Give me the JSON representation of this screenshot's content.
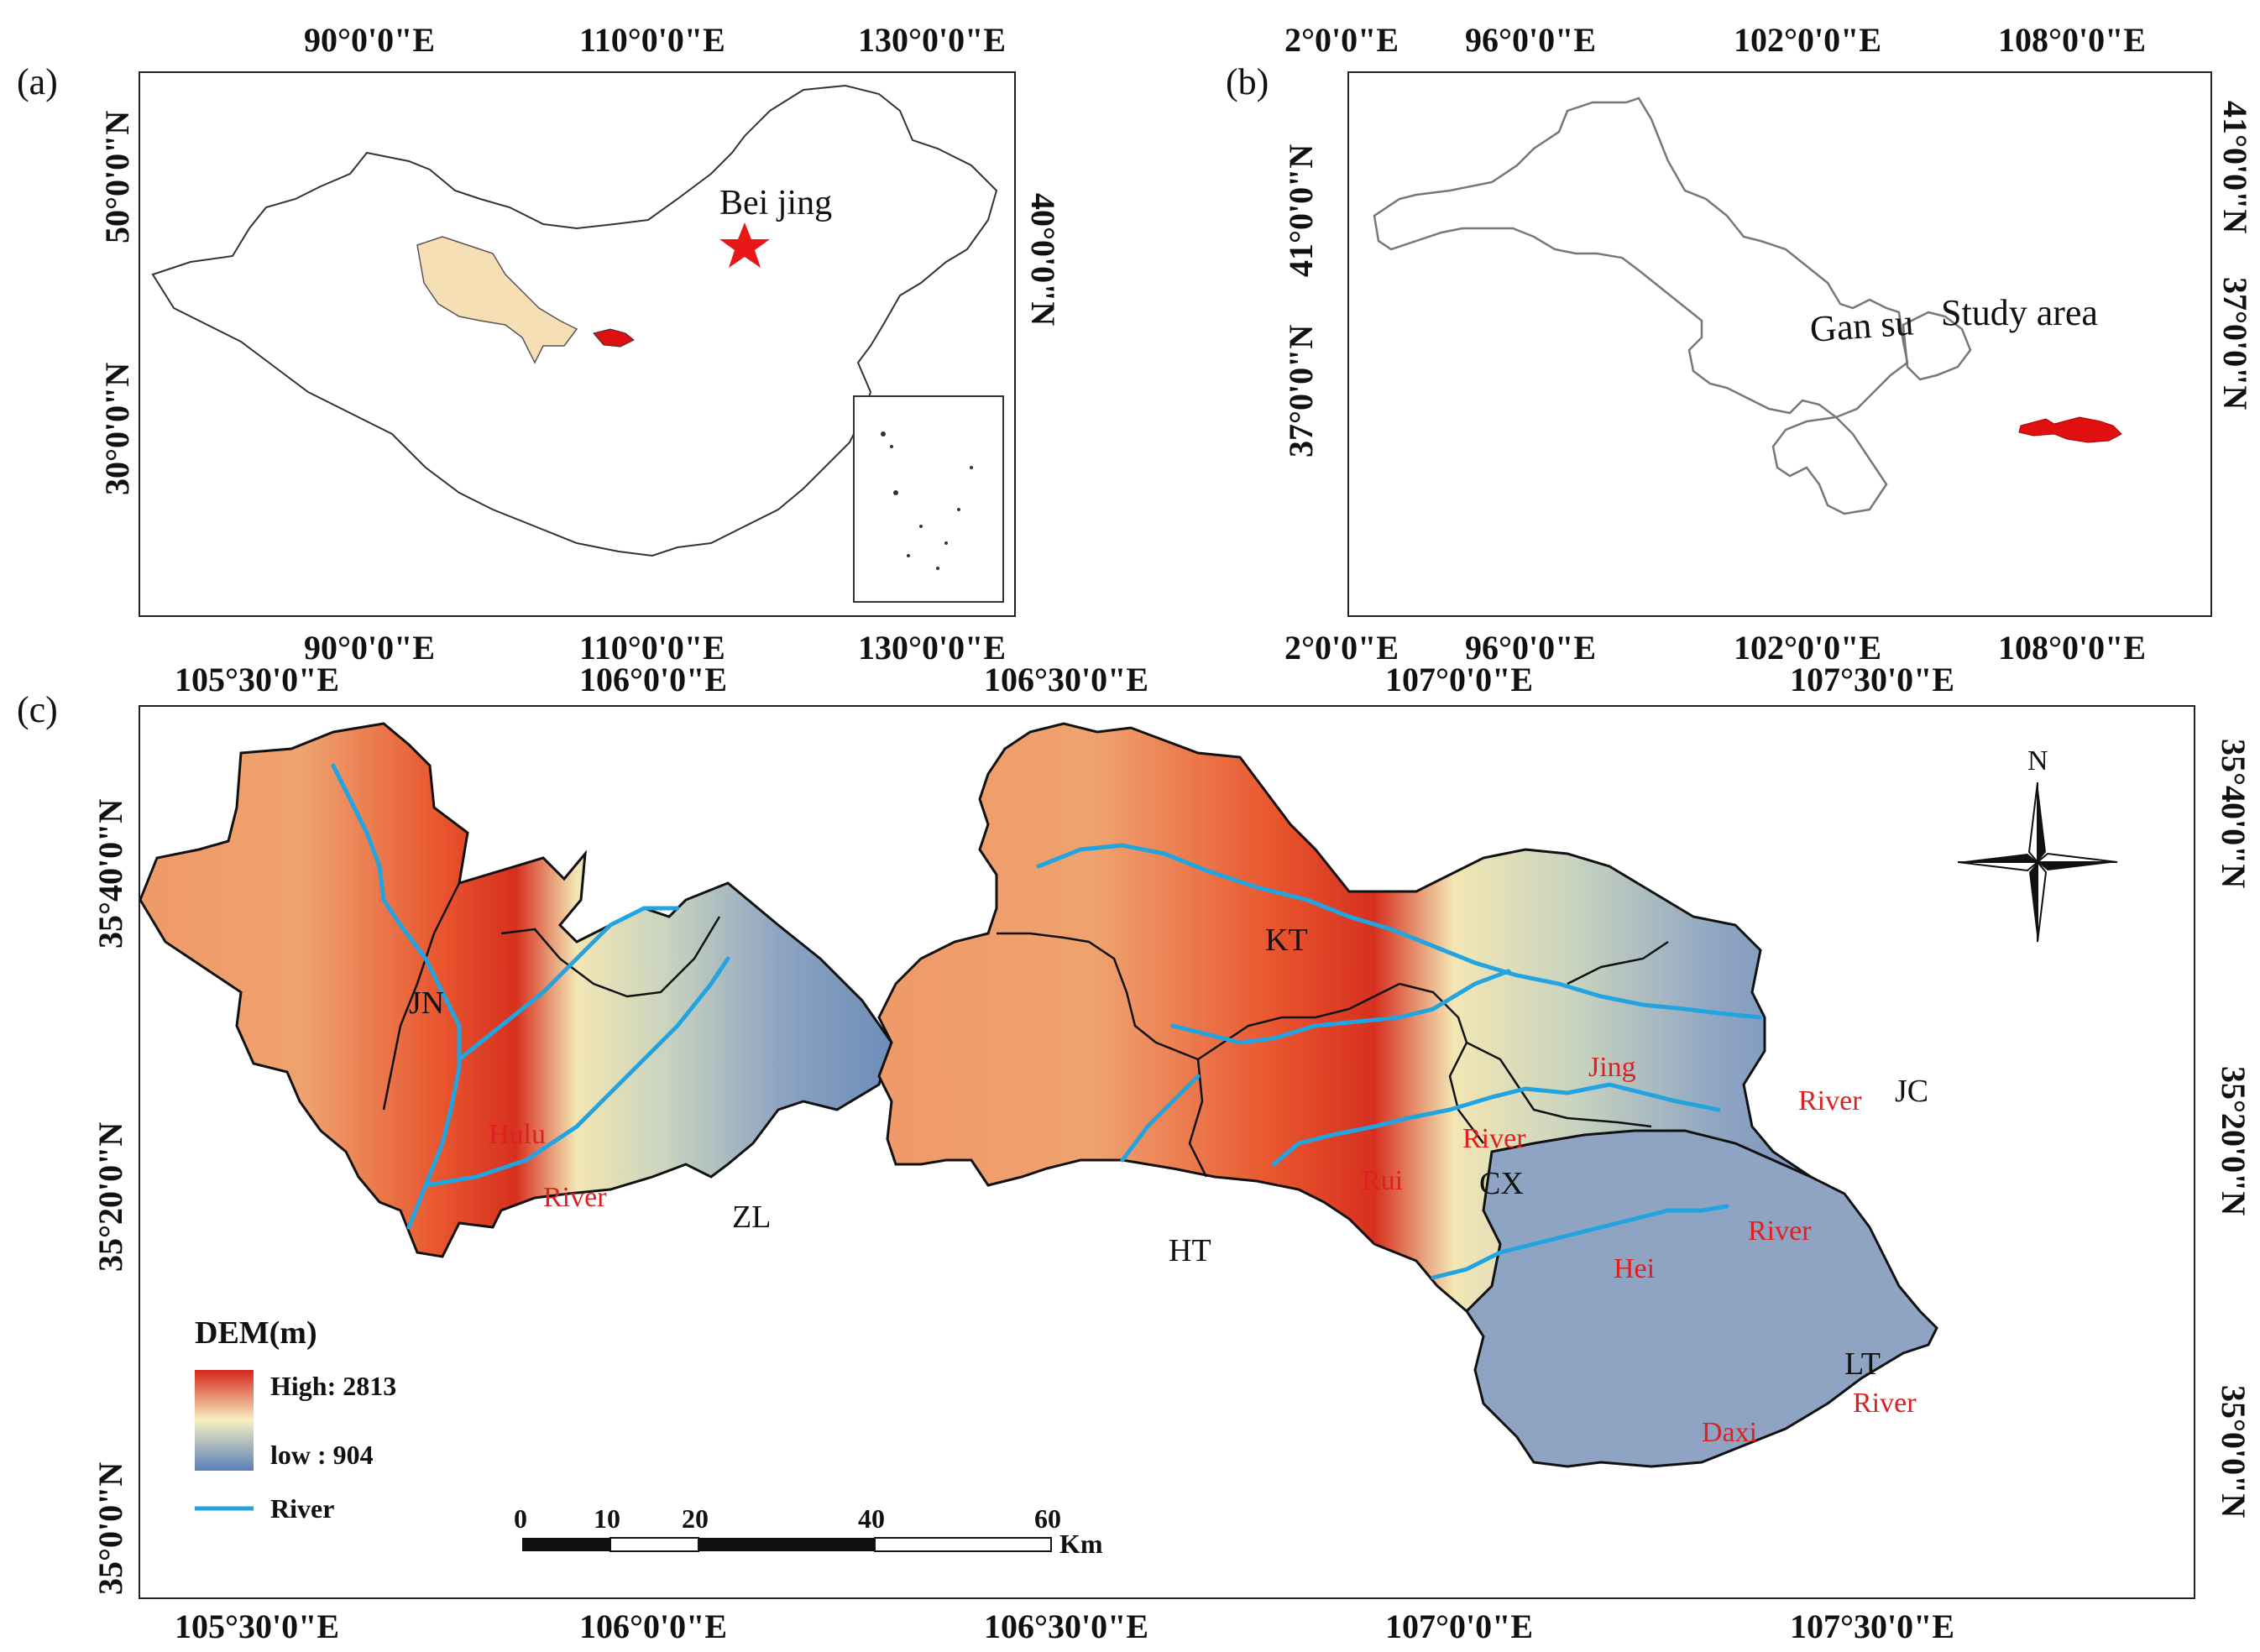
{
  "panel_a": {
    "label": "(a)",
    "top_ticks": [
      "90°0'0\"E",
      "110°0'0\"E",
      "130°0'0\"E"
    ],
    "bottom_ticks": [
      "90°0'0\"E",
      "110°0'0\"E",
      "130°0'0\"E"
    ],
    "left_ticks": [
      "50°0'0\"N",
      "30°0'0\"N"
    ],
    "right_ticks": [
      "40°0'0\"N"
    ],
    "capital_label": "Bei jing",
    "colors": {
      "gansu_fill": "#f7dfb5",
      "study_area": "#e01010",
      "capital_star": "#e81818"
    }
  },
  "panel_b": {
    "label": "(b)",
    "top_ticks": [
      "2°0'0\"E",
      "96°0'0\"E",
      "102°0'0\"E",
      "108°0'0\"E"
    ],
    "bottom_ticks": [
      "2°0'0\"E",
      "96°0'0\"E",
      "102°0'0\"E",
      "108°0'0\"E"
    ],
    "left_ticks": [
      "41°0'0\"N",
      "37°0'0\"N"
    ],
    "right_ticks": [
      "41°0'0\"N",
      "37°0'0\"N"
    ],
    "province_label": "Gan su",
    "study_label": "Study area"
  },
  "panel_c": {
    "label": "(c)",
    "top_ticks": [
      "105°30'0\"E",
      "106°0'0\"E",
      "106°30'0\"E",
      "107°0'0\"E",
      "107°30'0\"E"
    ],
    "bottom_ticks": [
      "105°30'0\"E",
      "106°0'0\"E",
      "106°30'0\"E",
      "107°0'0\"E",
      "107°30'0\"E"
    ],
    "left_ticks": [
      "35°40'0\"N",
      "35°20'0\"N",
      "35°0'0\"N"
    ],
    "right_ticks": [
      "35°40'0\"N",
      "35°20'0\"N",
      "35°0'0\"N"
    ],
    "regions": [
      "JN",
      "ZL",
      "HT",
      "KT",
      "CX",
      "JC",
      "LT"
    ],
    "rivers": [
      "Hulu",
      "River",
      "Jing",
      "River",
      "Rui",
      "River",
      "Hei",
      "River",
      "Daxi",
      "River"
    ],
    "north": "N",
    "legend": {
      "title": "DEM(m)",
      "high": "High: 2813",
      "low": "low : 904",
      "river": "River",
      "colors": {
        "high": "#d7261a",
        "mid": "#f6f0c2",
        "low": "#5b7fb8",
        "river": "#21a4e0"
      }
    },
    "scale": {
      "ticks": [
        "0",
        "10",
        "20",
        "40",
        "60"
      ],
      "unit": "Km"
    },
    "colors": {
      "river_label": "#e02020"
    }
  }
}
